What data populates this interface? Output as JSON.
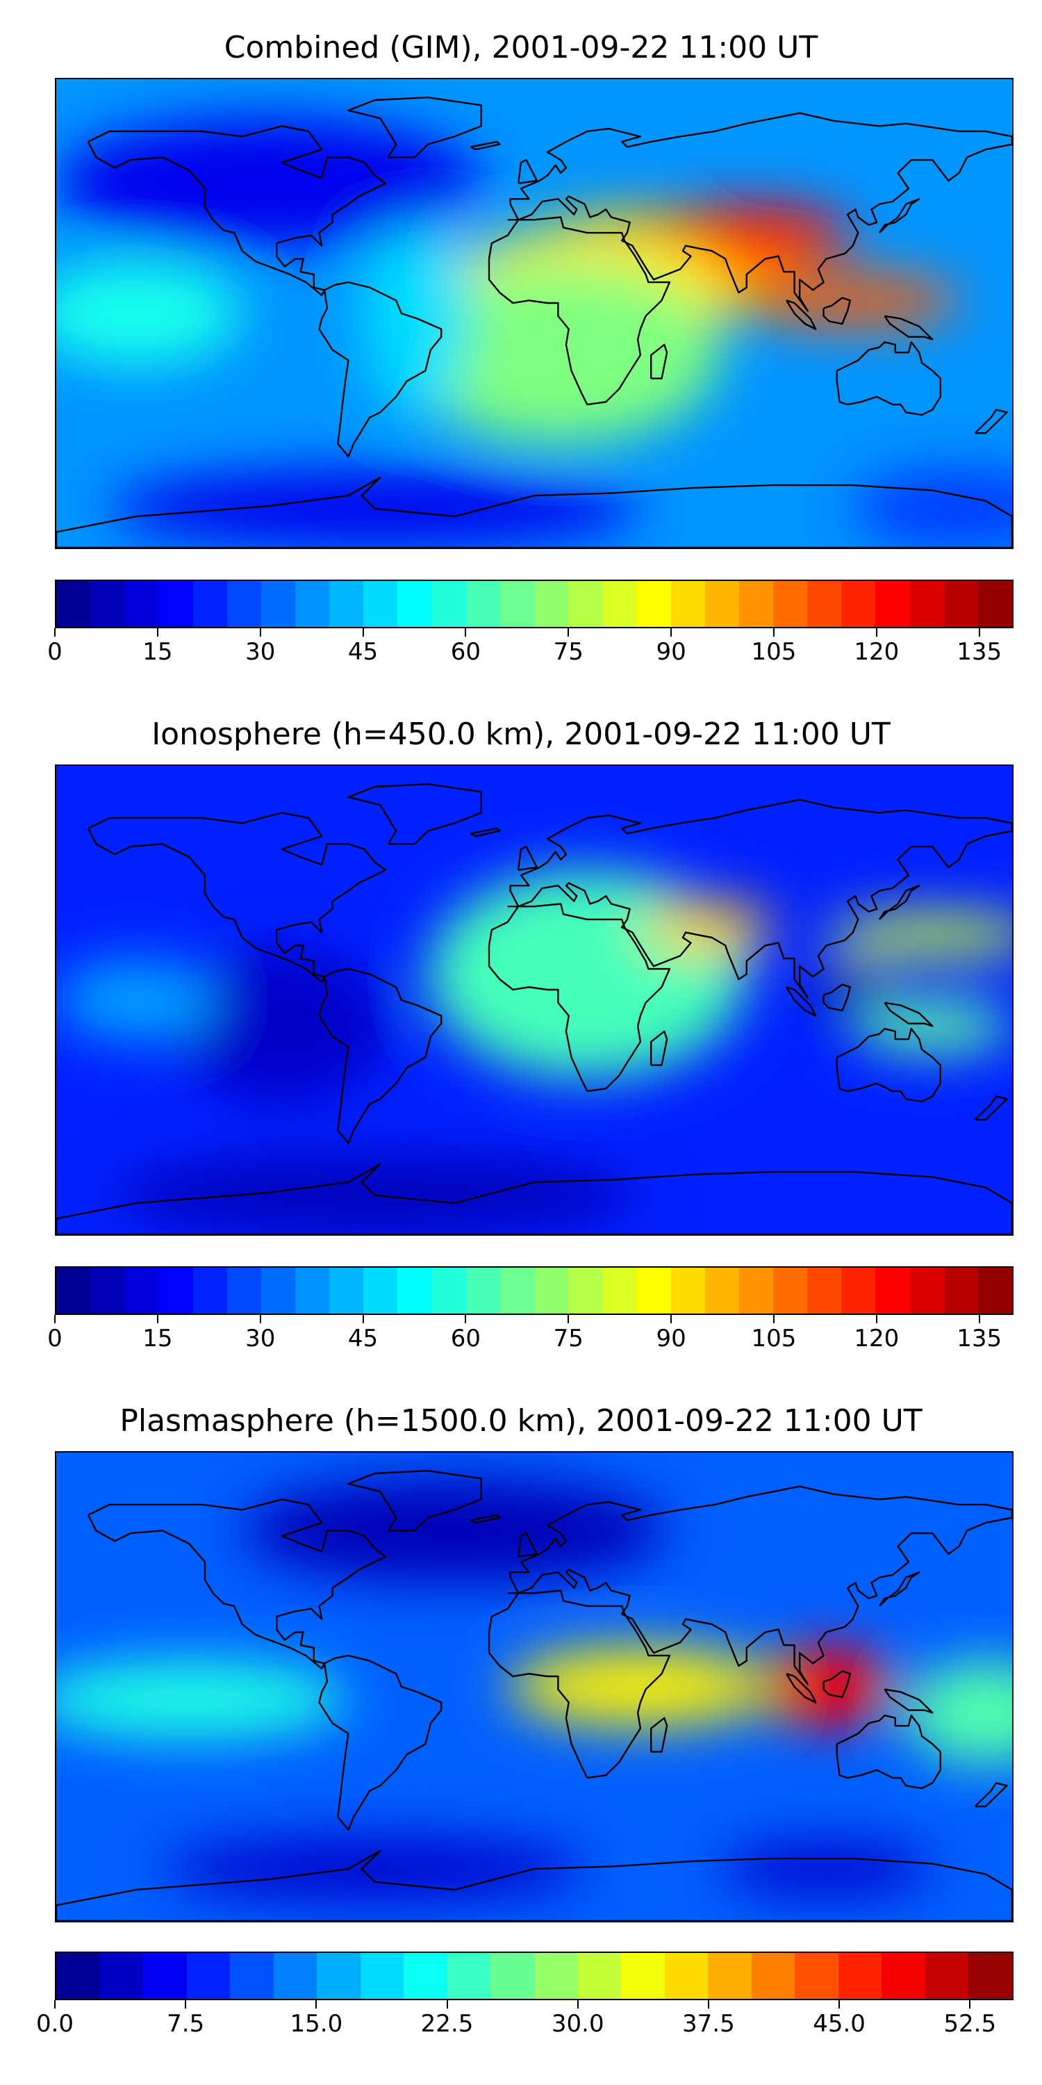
{
  "panels": [
    {
      "id": "combined",
      "title": "Combined (GIM), 2001-09-22 11:00 UT",
      "colorbar": {
        "min": 0,
        "max": 140,
        "levels": 28,
        "ticks": [
          "0",
          "15",
          "30",
          "45",
          "60",
          "75",
          "90",
          "105",
          "120",
          "135"
        ],
        "tick_values": [
          0,
          15,
          30,
          45,
          60,
          75,
          90,
          105,
          120,
          135
        ]
      },
      "background_value": 38,
      "features": [
        {
          "lon": 45,
          "lat": 18,
          "v": 100,
          "rx": 55,
          "ry": 22
        },
        {
          "lon": 80,
          "lat": 30,
          "v": 122,
          "rx": 40,
          "ry": 12
        },
        {
          "lon": 120,
          "lat": 5,
          "v": 110,
          "rx": 40,
          "ry": 10
        },
        {
          "lon": 20,
          "lat": 8,
          "v": 90,
          "rx": 55,
          "ry": 25
        },
        {
          "lon": 10,
          "lat": -15,
          "v": 70,
          "rx": 60,
          "ry": 35
        },
        {
          "lon": -150,
          "lat": 0,
          "v": 55,
          "rx": 40,
          "ry": 20
        },
        {
          "lon": -45,
          "lat": 0,
          "v": 48,
          "rx": 20,
          "ry": 40
        },
        {
          "lon": -100,
          "lat": 50,
          "v": 15,
          "rx": 80,
          "ry": 25
        },
        {
          "lon": -60,
          "lat": -75,
          "v": 15,
          "rx": 100,
          "ry": 15
        },
        {
          "lon": 160,
          "lat": -75,
          "v": 25,
          "rx": 40,
          "ry": 15
        }
      ]
    },
    {
      "id": "ionosphere",
      "title": "Ionosphere  (h=450.0 km), 2001-09-22 11:00 UT",
      "colorbar": {
        "min": 0,
        "max": 140,
        "levels": 28,
        "ticks": [
          "0",
          "15",
          "30",
          "45",
          "60",
          "75",
          "90",
          "105",
          "120",
          "135"
        ],
        "tick_values": [
          0,
          15,
          30,
          45,
          60,
          75,
          90,
          105,
          120,
          135
        ]
      },
      "background_value": 22,
      "features": [
        {
          "lon": 20,
          "lat": 10,
          "v": 62,
          "rx": 60,
          "ry": 40
        },
        {
          "lon": 65,
          "lat": 28,
          "v": 95,
          "rx": 25,
          "ry": 10
        },
        {
          "lon": 150,
          "lat": 25,
          "v": 80,
          "rx": 40,
          "ry": 8
        },
        {
          "lon": 120,
          "lat": 5,
          "v": 5,
          "rx": 15,
          "ry": 10
        },
        {
          "lon": 150,
          "lat": -10,
          "v": 65,
          "rx": 30,
          "ry": 10
        },
        {
          "lon": -95,
          "lat": -10,
          "v": 10,
          "rx": 40,
          "ry": 30
        },
        {
          "lon": -150,
          "lat": 0,
          "v": 40,
          "rx": 30,
          "ry": 15
        },
        {
          "lon": -60,
          "lat": -75,
          "v": 8,
          "rx": 100,
          "ry": 15
        }
      ]
    },
    {
      "id": "plasmasphere",
      "title": "Plasmasphere (h=1500.0 km), 2001-09-22 11:00 UT",
      "colorbar": {
        "min": 0,
        "max": 55,
        "levels": 22,
        "ticks": [
          "0.0",
          "7.5",
          "15.0",
          "22.5",
          "30.0",
          "37.5",
          "45.0",
          "52.5"
        ],
        "tick_values": [
          0,
          7.5,
          15,
          22.5,
          30,
          37.5,
          45,
          52.5
        ]
      },
      "background_value": 12,
      "features": [
        {
          "lon": 110,
          "lat": 0,
          "v": 48,
          "rx": 25,
          "ry": 15
        },
        {
          "lon": 40,
          "lat": 0,
          "v": 35,
          "rx": 50,
          "ry": 15
        },
        {
          "lon": 170,
          "lat": -10,
          "v": 25,
          "rx": 30,
          "ry": 20
        },
        {
          "lon": -130,
          "lat": -5,
          "v": 22,
          "rx": 60,
          "ry": 15
        },
        {
          "lon": -30,
          "lat": 60,
          "v": 3,
          "rx": 80,
          "ry": 20
        },
        {
          "lon": -60,
          "lat": -70,
          "v": 4,
          "rx": 80,
          "ry": 12
        },
        {
          "lon": 110,
          "lat": -70,
          "v": 4,
          "rx": 40,
          "ry": 10
        }
      ]
    }
  ],
  "map": {
    "lon_range": [
      -180,
      180
    ],
    "lat_range": [
      -90,
      90
    ],
    "colormap": "jet",
    "coastline_color": "#000000"
  }
}
